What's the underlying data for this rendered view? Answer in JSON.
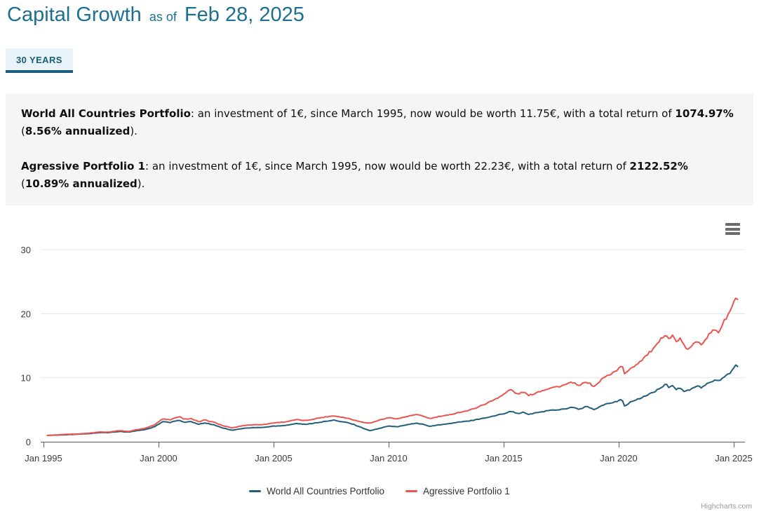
{
  "header": {
    "title": "Capital Growth",
    "as_of_label": "as of",
    "date": "Feb 28, 2025"
  },
  "tabs": [
    {
      "label": "30 YEARS",
      "active": true
    }
  ],
  "summary": {
    "world": {
      "name": "World All Countries Portfolio",
      "t1": ": an investment of 1€, since March 1995, now would be worth 11.75€, with a total return of ",
      "total_return": "1074.97%",
      "t2": " (",
      "annualized": "8.56% annualized",
      "t3": ")."
    },
    "agressive": {
      "name": "Agressive Portfolio 1",
      "t1": ": an investment of 1€, since March 1995, now would be worth 22.23€, with a total return of ",
      "total_return": "2122.52%",
      "t2": " (",
      "annualized": "10.89% annualized",
      "t3": ")."
    }
  },
  "colors": {
    "accent": "#1d7093",
    "tab_underline": "#1c5f80",
    "tab_bg": "#e9f3fa",
    "summary_bg": "#f5f5f5",
    "grid": "#e6e6e6",
    "axis": "#6f6f6f",
    "axis_label": "#3c3c3c",
    "legend_text": "#333333",
    "credits_text": "#9a9a9a",
    "series_world": "#215e7c",
    "series_agressive": "#ee544e"
  },
  "chart_credits": "Highcharts.com",
  "chart_data": {
    "type": "line",
    "title": "",
    "xlabel": "",
    "ylabel": "",
    "grid": "horizontal",
    "legend_position": "bottom-center",
    "x_axis": {
      "min": 1995,
      "max": 2025.5,
      "ticks": [
        1995,
        2000,
        2005,
        2010,
        2015,
        2020,
        2025
      ],
      "tick_labels": [
        "Jan 1995",
        "Jan 2000",
        "Jan 2005",
        "Jan 2010",
        "Jan 2015",
        "Jan 2020",
        "Jan 2025"
      ]
    },
    "y_axis": {
      "min": 0,
      "max": 31.8,
      "ticks": [
        0,
        10,
        20,
        30
      ]
    },
    "series": [
      {
        "name": "World All Countries Portfolio",
        "color": "#215e7c",
        "start": "Mar 1995",
        "end_value_eur": 11.75,
        "total_return_pct": 1074.97,
        "annualized_pct": 8.56,
        "points": [
          [
            1995.17,
            1.0
          ],
          [
            1995.5,
            1.03
          ],
          [
            1996,
            1.1
          ],
          [
            1996.5,
            1.17
          ],
          [
            1997,
            1.28
          ],
          [
            1997.5,
            1.45
          ],
          [
            1997.8,
            1.42
          ],
          [
            1998.3,
            1.62
          ],
          [
            1998.7,
            1.5
          ],
          [
            1999,
            1.7
          ],
          [
            1999.4,
            1.9
          ],
          [
            1999.8,
            2.3
          ],
          [
            2000.2,
            3.15
          ],
          [
            2000.5,
            3.0
          ],
          [
            2000.9,
            3.4
          ],
          [
            2001.1,
            3.05
          ],
          [
            2001.4,
            3.15
          ],
          [
            2001.75,
            2.7
          ],
          [
            2002,
            2.95
          ],
          [
            2002.4,
            2.65
          ],
          [
            2002.8,
            2.15
          ],
          [
            2003.2,
            1.8
          ],
          [
            2003.7,
            2.1
          ],
          [
            2004.1,
            2.2
          ],
          [
            2004.6,
            2.25
          ],
          [
            2005,
            2.45
          ],
          [
            2005.5,
            2.55
          ],
          [
            2006,
            2.85
          ],
          [
            2006.4,
            2.7
          ],
          [
            2006.8,
            2.95
          ],
          [
            2007.2,
            3.15
          ],
          [
            2007.6,
            3.35
          ],
          [
            2007.9,
            3.2
          ],
          [
            2008.3,
            2.95
          ],
          [
            2008.8,
            2.25
          ],
          [
            2009.2,
            1.7
          ],
          [
            2009.6,
            2.1
          ],
          [
            2010,
            2.45
          ],
          [
            2010.4,
            2.35
          ],
          [
            2010.8,
            2.65
          ],
          [
            2011.2,
            2.9
          ],
          [
            2011.6,
            2.65
          ],
          [
            2011.8,
            2.4
          ],
          [
            2012.2,
            2.65
          ],
          [
            2012.6,
            2.8
          ],
          [
            2013,
            3.05
          ],
          [
            2013.5,
            3.25
          ],
          [
            2014,
            3.6
          ],
          [
            2014.5,
            3.95
          ],
          [
            2015,
            4.4
          ],
          [
            2015.3,
            4.8
          ],
          [
            2015.6,
            4.4
          ],
          [
            2015.85,
            4.6
          ],
          [
            2016.1,
            4.25
          ],
          [
            2016.5,
            4.6
          ],
          [
            2017,
            4.9
          ],
          [
            2017.5,
            5.05
          ],
          [
            2018,
            5.4
          ],
          [
            2018.25,
            5.05
          ],
          [
            2018.6,
            5.5
          ],
          [
            2018.95,
            5.0
          ],
          [
            2019.3,
            5.7
          ],
          [
            2019.7,
            6.1
          ],
          [
            2020.05,
            6.5
          ],
          [
            2020.13,
            6.8
          ],
          [
            2020.25,
            5.5
          ],
          [
            2020.5,
            6.2
          ],
          [
            2020.75,
            6.5
          ],
          [
            2021,
            6.9
          ],
          [
            2021.3,
            7.4
          ],
          [
            2021.6,
            7.9
          ],
          [
            2021.9,
            8.6
          ],
          [
            2022.05,
            9.0
          ],
          [
            2022.2,
            8.4
          ],
          [
            2022.35,
            8.8
          ],
          [
            2022.5,
            8.1
          ],
          [
            2022.65,
            8.5
          ],
          [
            2022.85,
            7.9
          ],
          [
            2023.05,
            8.0
          ],
          [
            2023.25,
            8.5
          ],
          [
            2023.45,
            8.7
          ],
          [
            2023.6,
            8.4
          ],
          [
            2023.8,
            8.9
          ],
          [
            2024,
            9.4
          ],
          [
            2024.2,
            9.7
          ],
          [
            2024.35,
            9.5
          ],
          [
            2024.5,
            10.0
          ],
          [
            2024.7,
            10.4
          ],
          [
            2024.85,
            10.8
          ],
          [
            2024.95,
            11.2
          ],
          [
            2025.05,
            12.1
          ],
          [
            2025.17,
            11.75
          ]
        ]
      },
      {
        "name": "Agressive Portfolio 1",
        "color": "#ee544e",
        "start": "Mar 1995",
        "end_value_eur": 22.23,
        "total_return_pct": 2122.52,
        "annualized_pct": 10.89,
        "points": [
          [
            1995.17,
            1.0
          ],
          [
            1995.5,
            1.05
          ],
          [
            1996,
            1.15
          ],
          [
            1996.5,
            1.22
          ],
          [
            1997,
            1.35
          ],
          [
            1997.5,
            1.55
          ],
          [
            1997.8,
            1.5
          ],
          [
            1998.3,
            1.75
          ],
          [
            1998.7,
            1.6
          ],
          [
            1999,
            1.85
          ],
          [
            1999.4,
            2.1
          ],
          [
            1999.8,
            2.6
          ],
          [
            2000.2,
            3.6
          ],
          [
            2000.5,
            3.4
          ],
          [
            2000.9,
            3.95
          ],
          [
            2001.1,
            3.5
          ],
          [
            2001.4,
            3.65
          ],
          [
            2001.75,
            3.1
          ],
          [
            2002,
            3.4
          ],
          [
            2002.4,
            3.05
          ],
          [
            2002.8,
            2.5
          ],
          [
            2003.2,
            2.15
          ],
          [
            2003.7,
            2.55
          ],
          [
            2004.1,
            2.65
          ],
          [
            2004.6,
            2.7
          ],
          [
            2005,
            2.95
          ],
          [
            2005.5,
            3.1
          ],
          [
            2006,
            3.45
          ],
          [
            2006.4,
            3.3
          ],
          [
            2006.8,
            3.6
          ],
          [
            2007.2,
            3.85
          ],
          [
            2007.6,
            4.05
          ],
          [
            2007.9,
            3.9
          ],
          [
            2008.3,
            3.6
          ],
          [
            2008.8,
            3.1
          ],
          [
            2009.2,
            2.9
          ],
          [
            2009.6,
            3.4
          ],
          [
            2010,
            3.75
          ],
          [
            2010.4,
            3.6
          ],
          [
            2010.8,
            3.95
          ],
          [
            2011.2,
            4.25
          ],
          [
            2011.6,
            3.9
          ],
          [
            2011.8,
            3.6
          ],
          [
            2012.2,
            3.95
          ],
          [
            2012.6,
            4.15
          ],
          [
            2013,
            4.55
          ],
          [
            2013.5,
            4.9
          ],
          [
            2014,
            5.6
          ],
          [
            2014.5,
            6.4
          ],
          [
            2015,
            7.4
          ],
          [
            2015.3,
            8.2
          ],
          [
            2015.6,
            7.4
          ],
          [
            2015.85,
            7.8
          ],
          [
            2016.1,
            7.2
          ],
          [
            2016.5,
            7.8
          ],
          [
            2017,
            8.4
          ],
          [
            2017.5,
            8.7
          ],
          [
            2018,
            9.3
          ],
          [
            2018.25,
            8.7
          ],
          [
            2018.6,
            9.4
          ],
          [
            2018.95,
            8.6
          ],
          [
            2019.3,
            9.9
          ],
          [
            2019.7,
            10.7
          ],
          [
            2020.05,
            11.5
          ],
          [
            2020.13,
            12.2
          ],
          [
            2020.25,
            10.5
          ],
          [
            2020.5,
            11.5
          ],
          [
            2020.75,
            12.0
          ],
          [
            2021,
            12.8
          ],
          [
            2021.3,
            13.8
          ],
          [
            2021.6,
            14.8
          ],
          [
            2021.9,
            16.3
          ],
          [
            2022.05,
            17.0
          ],
          [
            2022.2,
            16.0
          ],
          [
            2022.35,
            16.6
          ],
          [
            2022.5,
            15.6
          ],
          [
            2022.65,
            16.2
          ],
          [
            2022.85,
            14.9
          ],
          [
            2023.05,
            14.4
          ],
          [
            2023.25,
            15.2
          ],
          [
            2023.45,
            15.8
          ],
          [
            2023.6,
            15.3
          ],
          [
            2023.8,
            16.2
          ],
          [
            2024,
            17.0
          ],
          [
            2024.2,
            17.6
          ],
          [
            2024.35,
            17.1
          ],
          [
            2024.5,
            18.3
          ],
          [
            2024.7,
            19.5
          ],
          [
            2024.85,
            20.4
          ],
          [
            2024.95,
            21.3
          ],
          [
            2025.05,
            22.5
          ],
          [
            2025.17,
            22.23
          ]
        ]
      }
    ]
  }
}
